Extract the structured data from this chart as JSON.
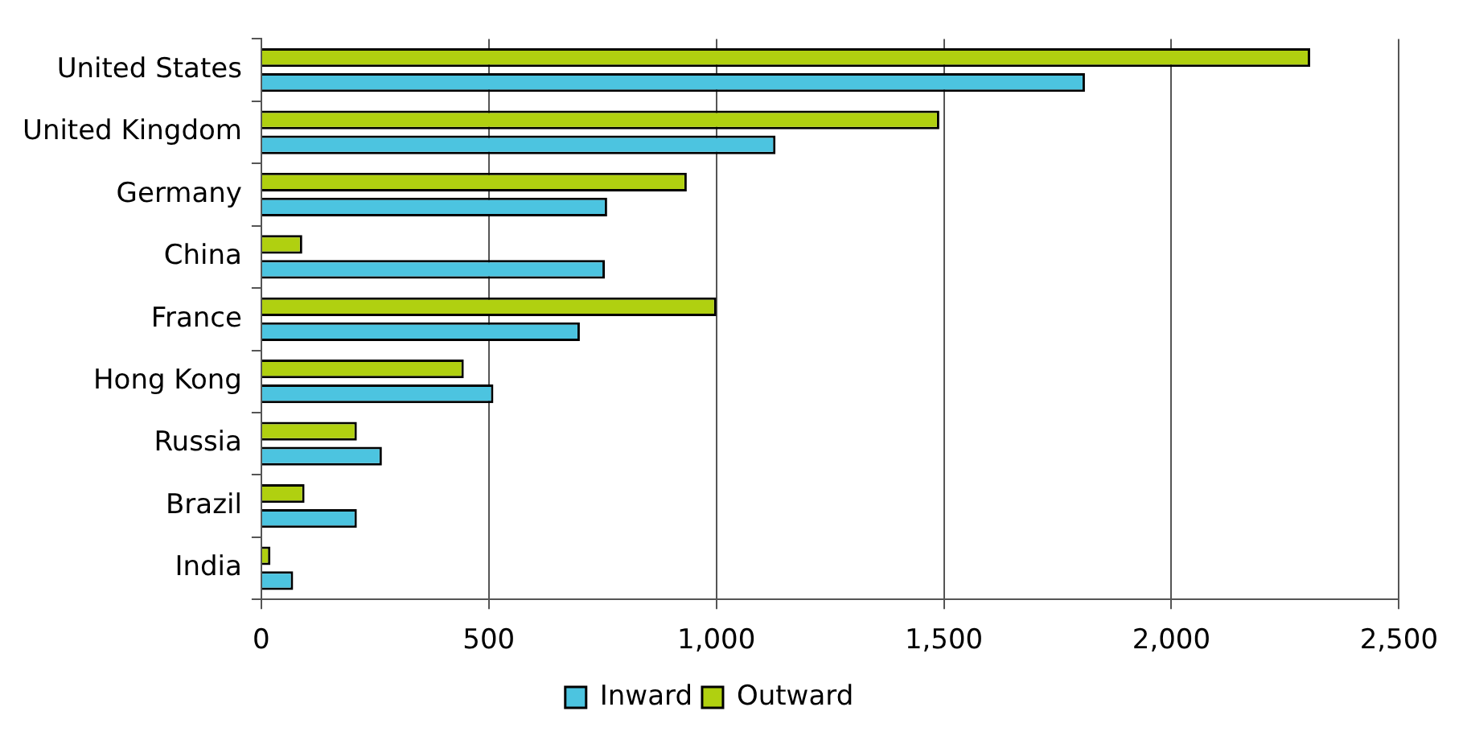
{
  "chart_data": {
    "type": "bar",
    "orientation": "horizontal",
    "categories": [
      "United States",
      "United Kingdom",
      "Germany",
      "China",
      "France",
      "Hong Kong",
      "Russia",
      "Brazil",
      "India"
    ],
    "series": [
      {
        "name": "Inward",
        "color": "#4cc4e0",
        "values": [
          1810,
          1130,
          760,
          755,
          700,
          510,
          265,
          210,
          70
        ]
      },
      {
        "name": "Outward",
        "color": "#b0d010",
        "values": [
          2305,
          1490,
          935,
          90,
          1000,
          445,
          210,
          95,
          20
        ]
      }
    ],
    "xlim": [
      0,
      2500
    ],
    "xticks": [
      0,
      {
        "value": 500,
        "label": "500"
      },
      {
        "value": 1000,
        "label": "1,000"
      },
      {
        "value": 1500,
        "label": "1,500"
      },
      {
        "value": 2000,
        "label": "2,000"
      },
      {
        "value": 2500,
        "label": "2,500"
      }
    ],
    "grid": "x",
    "legend": "bottom"
  }
}
